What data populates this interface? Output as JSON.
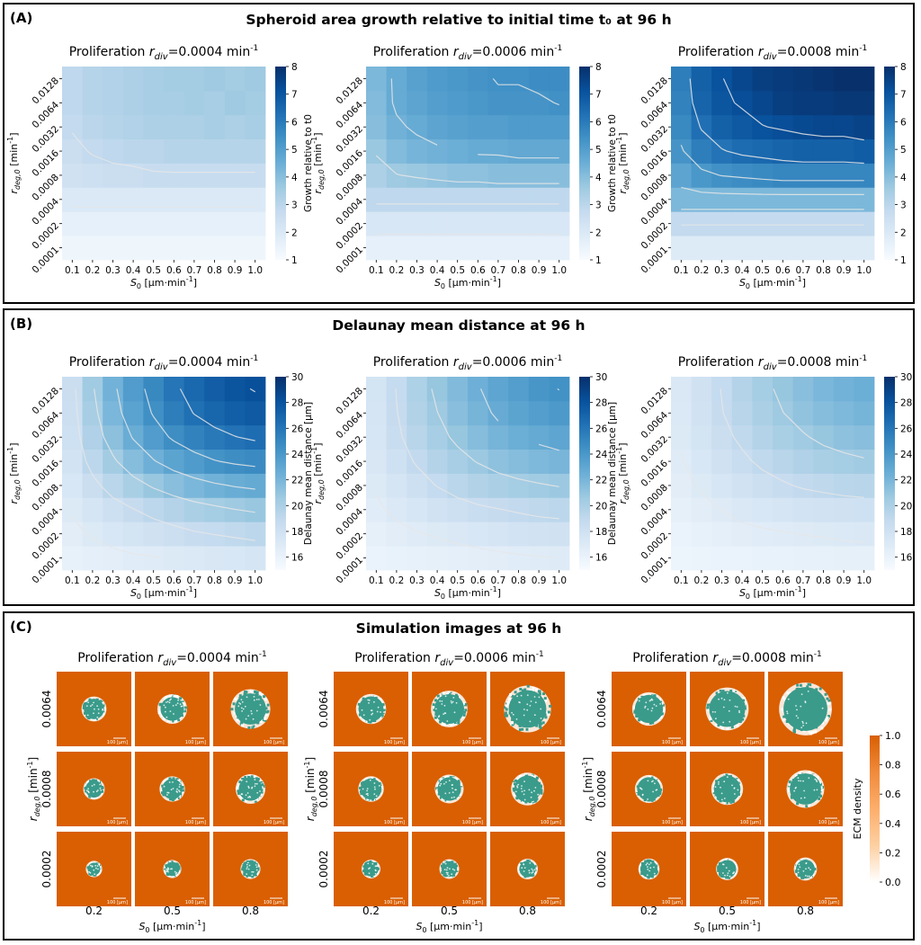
{
  "colors": {
    "blue_low": "#f7fbff",
    "blue_high": "#08306b",
    "ecm_low": "#ffffff",
    "ecm_high": "#d95f02",
    "cell": "#3a9b8b",
    "contour": "#e6e6e6"
  },
  "panels": {
    "A": {
      "label": "(A)",
      "title": "Spheroid area growth relative to initial time t₀ at 96 h"
    },
    "B": {
      "label": "(B)",
      "title": "Delaunay mean distance at 96 h"
    },
    "C": {
      "label": "(C)",
      "title": "Simulation images at 96 h"
    }
  },
  "subtitles": [
    {
      "prefix": "Proliferation ",
      "r": "r",
      "sub": "div",
      "value": "=0.0004 min",
      "sup": "-1"
    },
    {
      "prefix": "Proliferation ",
      "r": "r",
      "sub": "div",
      "value": "=0.0006 min",
      "sup": "-1"
    },
    {
      "prefix": "Proliferation ",
      "r": "r",
      "sub": "div",
      "value": "=0.0008 min",
      "sup": "-1"
    }
  ],
  "axes": {
    "xlabel": {
      "s": "S",
      "sub": "0",
      "rest": " [μm·min",
      "sup": "-1",
      "end": "]"
    },
    "ylabel": {
      "r": "r",
      "sub": "deg,0",
      "rest": " [min",
      "sup": "-1",
      "end": "]"
    }
  },
  "chart_data": [
    {
      "type": "heatmap",
      "panel": "A",
      "title": "Spheroid area growth relative to initial time t0 at 96 h",
      "x": [
        "0.1",
        "0.2",
        "0.3",
        "0.4",
        "0.5",
        "0.6",
        "0.7",
        "0.8",
        "0.9",
        "1.0"
      ],
      "y": [
        "0.0001",
        "0.0002",
        "0.0004",
        "0.0008",
        "0.0016",
        "0.0032",
        "0.0064",
        "0.0128"
      ],
      "colorbar": {
        "label": "Growth relative to t0",
        "min": 1,
        "max": 8,
        "ticks": [
          1,
          2,
          3,
          4,
          5,
          6,
          7,
          8
        ]
      },
      "series": [
        {
          "name": "Proliferation rdiv=0.0004 min-1",
          "z": [
            [
              1.3,
              1.3,
              1.3,
              1.3,
              1.3,
              1.3,
              1.3,
              1.3,
              1.3,
              1.3
            ],
            [
              1.6,
              1.6,
              1.6,
              1.6,
              1.6,
              1.6,
              1.6,
              1.6,
              1.6,
              1.6
            ],
            [
              2.0,
              2.0,
              2.0,
              2.0,
              2.0,
              2.0,
              2.0,
              2.0,
              2.0,
              2.0
            ],
            [
              2.4,
              2.5,
              2.6,
              2.6,
              2.7,
              2.7,
              2.7,
              2.7,
              2.7,
              2.7
            ],
            [
              2.6,
              2.8,
              2.9,
              3.0,
              3.0,
              3.1,
              3.1,
              3.1,
              3.1,
              3.1
            ],
            [
              2.8,
              3.0,
              3.1,
              3.2,
              3.3,
              3.3,
              3.3,
              3.4,
              3.3,
              3.4
            ],
            [
              2.9,
              3.1,
              3.2,
              3.3,
              3.4,
              3.4,
              3.5,
              3.4,
              3.6,
              3.5
            ],
            [
              2.9,
              3.1,
              3.2,
              3.3,
              3.4,
              3.5,
              3.5,
              3.6,
              3.5,
              3.6
            ]
          ]
        },
        {
          "name": "Proliferation rdiv=0.0006 min-1",
          "z": [
            [
              1.6,
              1.6,
              1.6,
              1.6,
              1.6,
              1.6,
              1.6,
              1.6,
              1.6,
              1.6
            ],
            [
              2.1,
              2.1,
              2.1,
              2.1,
              2.1,
              2.1,
              2.1,
              2.1,
              2.1,
              2.1
            ],
            [
              2.9,
              2.9,
              2.9,
              2.9,
              2.9,
              2.9,
              2.9,
              2.9,
              2.9,
              2.9
            ],
            [
              3.3,
              3.6,
              3.7,
              3.8,
              3.9,
              3.9,
              4.0,
              4.0,
              4.0,
              4.0
            ],
            [
              3.7,
              4.1,
              4.3,
              4.4,
              4.5,
              4.6,
              4.6,
              4.7,
              4.7,
              4.7
            ],
            [
              4.0,
              4.4,
              4.6,
              4.8,
              4.9,
              5.0,
              5.0,
              5.1,
              5.1,
              5.1
            ],
            [
              4.1,
              4.6,
              4.8,
              5.0,
              5.1,
              5.2,
              5.3,
              5.3,
              5.3,
              5.4
            ],
            [
              4.2,
              4.6,
              4.9,
              5.1,
              5.2,
              5.3,
              5.4,
              5.4,
              5.5,
              5.5
            ]
          ]
        },
        {
          "name": "Proliferation rdiv=0.0008 min-1",
          "z": [
            [
              1.9,
              1.9,
              1.9,
              1.9,
              1.9,
              1.9,
              1.9,
              1.9,
              1.9,
              1.9
            ],
            [
              2.8,
              2.8,
              2.8,
              2.8,
              2.8,
              2.8,
              2.8,
              2.8,
              2.8,
              2.8
            ],
            [
              4.2,
              4.2,
              4.2,
              4.2,
              4.2,
              4.2,
              4.2,
              4.2,
              4.2,
              4.2
            ],
            [
              4.8,
              5.2,
              5.4,
              5.5,
              5.6,
              5.7,
              5.7,
              5.7,
              5.7,
              5.7
            ],
            [
              5.3,
              5.9,
              6.2,
              6.4,
              6.5,
              6.6,
              6.7,
              6.7,
              6.7,
              6.8
            ],
            [
              5.6,
              6.3,
              6.7,
              6.9,
              7.1,
              7.2,
              7.3,
              7.4,
              7.4,
              7.5
            ],
            [
              5.8,
              6.6,
              7.0,
              7.2,
              7.4,
              7.6,
              7.7,
              7.7,
              7.8,
              7.8
            ],
            [
              5.9,
              6.7,
              7.1,
              7.4,
              7.6,
              7.7,
              7.8,
              7.9,
              8.0,
              8.0
            ]
          ]
        }
      ]
    },
    {
      "type": "heatmap",
      "panel": "B",
      "title": "Delaunay mean distance at 96 h",
      "x": [
        "0.1",
        "0.2",
        "0.3",
        "0.4",
        "0.5",
        "0.6",
        "0.7",
        "0.8",
        "0.9",
        "1.0"
      ],
      "y": [
        "0.0001",
        "0.0002",
        "0.0004",
        "0.0008",
        "0.0016",
        "0.0032",
        "0.0064",
        "0.0128"
      ],
      "colorbar": {
        "label": "Delaunay mean distance [μm]",
        "min": 15,
        "max": 30,
        "ticks": [
          16,
          18,
          20,
          22,
          24,
          26,
          28,
          30
        ]
      },
      "series": [
        {
          "name": "Proliferation rdiv=0.0004 min-1",
          "z": [
            [
              16.2,
              16.4,
              16.5,
              16.7,
              16.8,
              17.0,
              17.1,
              17.3,
              17.4,
              17.6
            ],
            [
              16.6,
              17.0,
              17.4,
              17.7,
              18.0,
              18.3,
              18.6,
              18.8,
              19.0,
              19.2
            ],
            [
              17.0,
              17.6,
              18.2,
              18.7,
              19.2,
              19.6,
              20.0,
              20.3,
              20.6,
              20.8
            ],
            [
              17.4,
              18.4,
              19.3,
              20.1,
              20.8,
              21.4,
              21.9,
              22.3,
              22.6,
              22.8
            ],
            [
              17.8,
              19.2,
              20.4,
              21.5,
              22.4,
              23.2,
              23.8,
              24.3,
              24.6,
              24.8
            ],
            [
              18.1,
              19.8,
              21.3,
              22.6,
              23.7,
              24.6,
              25.3,
              25.8,
              26.2,
              26.5
            ],
            [
              18.3,
              20.2,
              21.9,
              23.3,
              24.5,
              25.5,
              26.3,
              26.9,
              27.3,
              27.6
            ],
            [
              18.4,
              20.5,
              22.2,
              23.7,
              24.9,
              26.0,
              26.8,
              27.4,
              27.9,
              28.2
            ]
          ]
        },
        {
          "name": "Proliferation rdiv=0.0006 min-1",
          "z": [
            [
              16.0,
              16.1,
              16.2,
              16.3,
              16.4,
              16.5,
              16.6,
              16.7,
              16.8,
              16.9
            ],
            [
              16.3,
              16.6,
              16.8,
              17.0,
              17.2,
              17.4,
              17.6,
              17.8,
              17.9,
              18.0
            ],
            [
              16.7,
              17.1,
              17.5,
              17.9,
              18.2,
              18.5,
              18.7,
              18.9,
              19.1,
              19.2
            ],
            [
              17.0,
              17.6,
              18.2,
              18.8,
              19.3,
              19.7,
              20.0,
              20.3,
              20.5,
              20.7
            ],
            [
              17.3,
              18.1,
              18.9,
              19.6,
              20.2,
              20.7,
              21.2,
              21.5,
              21.8,
              22.0
            ],
            [
              17.5,
              18.5,
              19.4,
              20.2,
              20.9,
              21.5,
              22.1,
              22.5,
              22.8,
              23.1
            ],
            [
              17.6,
              18.7,
              19.7,
              20.6,
              21.4,
              22.1,
              22.7,
              23.2,
              23.6,
              23.9
            ],
            [
              17.7,
              18.8,
              19.9,
              20.9,
              21.7,
              22.4,
              23.1,
              23.6,
              24.1,
              24.4
            ]
          ]
        },
        {
          "name": "Proliferation rdiv=0.0008 min-1",
          "z": [
            [
              15.8,
              15.9,
              16.0,
              16.0,
              16.1,
              16.1,
              16.2,
              16.2,
              16.3,
              16.3
            ],
            [
              16.0,
              16.2,
              16.4,
              16.6,
              16.7,
              16.8,
              16.9,
              17.0,
              17.1,
              17.2
            ],
            [
              16.3,
              16.6,
              16.9,
              17.2,
              17.4,
              17.6,
              17.8,
              17.9,
              18.0,
              18.1
            ],
            [
              16.6,
              17.0,
              17.5,
              17.9,
              18.3,
              18.6,
              18.9,
              19.1,
              19.3,
              19.4
            ],
            [
              16.8,
              17.4,
              18.0,
              18.5,
              19.0,
              19.4,
              19.8,
              20.1,
              20.3,
              20.5
            ],
            [
              17.0,
              17.7,
              18.4,
              19.0,
              19.6,
              20.1,
              20.5,
              20.9,
              21.2,
              21.4
            ],
            [
              17.1,
              17.9,
              18.7,
              19.4,
              20.0,
              20.6,
              21.1,
              21.5,
              21.8,
              22.1
            ],
            [
              17.2,
              18.0,
              18.8,
              19.6,
              20.3,
              20.9,
              21.4,
              21.9,
              22.2,
              22.5
            ]
          ]
        }
      ]
    },
    {
      "type": "image-grid",
      "panel": "C",
      "title": "Simulation images at 96 h",
      "x": [
        "0.2",
        "0.5",
        "0.8"
      ],
      "y": [
        "0.0064",
        "0.0008",
        "0.0002"
      ],
      "scalebar": "100 [μm]",
      "colorbar": {
        "label": "ECM density",
        "min": 0.0,
        "max": 1.0,
        "ticks": [
          "0.0",
          "0.2",
          "0.4",
          "0.6",
          "0.8",
          "1.0"
        ]
      },
      "spheroid_radius_fraction": [
        [
          [
            0.26,
            0.3,
            0.4
          ],
          [
            0.22,
            0.26,
            0.3
          ],
          [
            0.16,
            0.18,
            0.2
          ]
        ],
        [
          [
            0.32,
            0.38,
            0.48
          ],
          [
            0.27,
            0.3,
            0.34
          ],
          [
            0.19,
            0.2,
            0.21
          ]
        ],
        [
          [
            0.36,
            0.46,
            0.56
          ],
          [
            0.3,
            0.34,
            0.4
          ],
          [
            0.22,
            0.23,
            0.24
          ]
        ]
      ],
      "white_halo": [
        [
          [
            0.25,
            0.55,
            0.75
          ],
          [
            0.2,
            0.35,
            0.55
          ],
          [
            0.1,
            0.15,
            0.2
          ]
        ],
        [
          [
            0.3,
            0.55,
            0.75
          ],
          [
            0.2,
            0.35,
            0.5
          ],
          [
            0.1,
            0.15,
            0.2
          ]
        ],
        [
          [
            0.3,
            0.45,
            0.6
          ],
          [
            0.2,
            0.3,
            0.45
          ],
          [
            0.1,
            0.15,
            0.2
          ]
        ]
      ]
    }
  ]
}
